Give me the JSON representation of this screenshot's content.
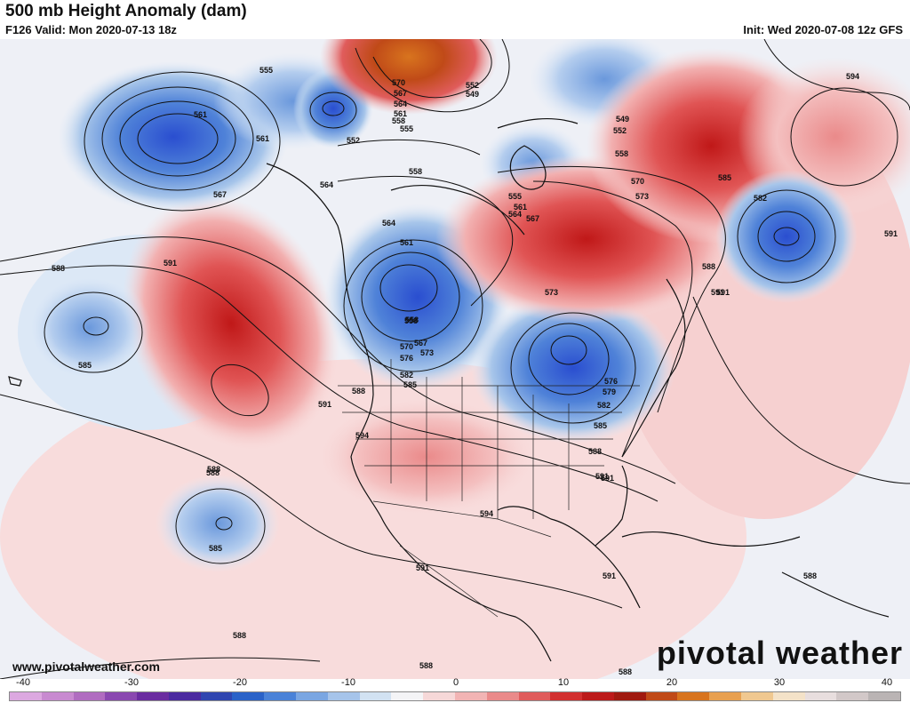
{
  "header": {
    "title": "500 mb Height Anomaly (dam)",
    "valid": "F126 Valid: Mon 2020-07-13 18z",
    "init": "Init: Wed 2020-07-08 12z GFS"
  },
  "footer": {
    "url": "www.pivotalweather.com",
    "logo": "pivotal weather"
  },
  "colorbar": {
    "tick_labels": [
      "-40",
      "-30",
      "-20",
      "-10",
      "0",
      "10",
      "20",
      "30",
      "40"
    ],
    "colors": [
      "#dca8e0",
      "#c88ad0",
      "#b06cc0",
      "#8a48b0",
      "#6a2ca0",
      "#4b2aa0",
      "#3046b0",
      "#2a62c8",
      "#4a82d8",
      "#7aa6e2",
      "#a6c4ea",
      "#d2e2f2",
      "#f4f4f6",
      "#f6d8d8",
      "#f2b4b4",
      "#ea8a8a",
      "#e05c5c",
      "#d23030",
      "#bc1a1a",
      "#a01a10",
      "#c04a18",
      "#d8741e",
      "#e8a050",
      "#f0c890",
      "#f4e2c8",
      "#e8dede",
      "#d2c8c8",
      "#bab4b4"
    ]
  },
  "contours": {
    "labels": [
      "555",
      "561",
      "561",
      "567",
      "552",
      "570",
      "567",
      "564",
      "561",
      "558",
      "555",
      "552",
      "549",
      "558",
      "564",
      "564",
      "558",
      "561",
      "555",
      "561",
      "564",
      "567",
      "549",
      "552",
      "558",
      "570",
      "573",
      "594",
      "585",
      "582",
      "591",
      "588",
      "591",
      "588",
      "591",
      "573",
      "558",
      "570",
      "567",
      "576",
      "573",
      "582",
      "585",
      "579",
      "576",
      "582",
      "585",
      "588",
      "591",
      "588",
      "591",
      "594",
      "594",
      "588",
      "585",
      "591",
      "588",
      "591",
      "588",
      "588",
      "588",
      "588",
      "591",
      "585",
      "591"
    ]
  },
  "anomaly_centers": [
    {
      "label": "northeast Pacific low",
      "sign": "negative"
    },
    {
      "label": "Alaska low",
      "sign": "negative"
    },
    {
      "label": "Arctic high",
      "sign": "positive"
    },
    {
      "label": "Baffin low",
      "sign": "negative"
    },
    {
      "label": "Northwest US low",
      "sign": "negative"
    },
    {
      "label": "Great Lakes low",
      "sign": "negative"
    },
    {
      "label": "Hudson Bay high",
      "sign": "positive"
    },
    {
      "label": "Atlantic low",
      "sign": "negative"
    },
    {
      "label": "Gulf of Alaska ridge",
      "sign": "positive"
    },
    {
      "label": "Hawaii low",
      "sign": "negative"
    }
  ]
}
